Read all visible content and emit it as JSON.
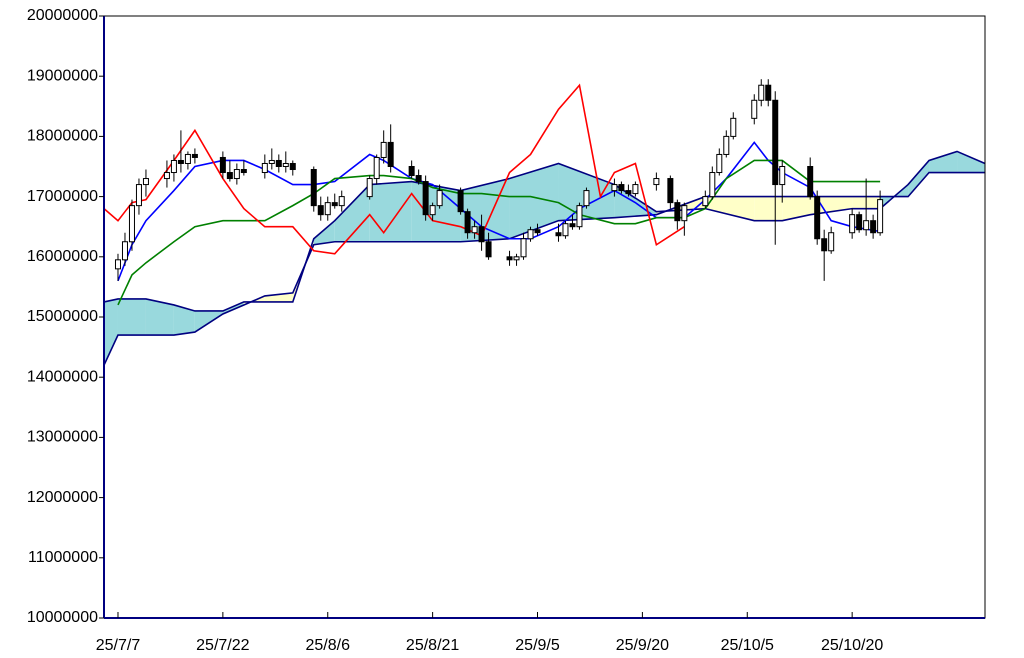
{
  "chart_data": {
    "type": "candlestick",
    "xlim": [
      -2,
      124
    ],
    "ylim": [
      10000000,
      20000000
    ],
    "yticks": [
      10000000,
      11000000,
      12000000,
      13000000,
      14000000,
      15000000,
      16000000,
      17000000,
      18000000,
      19000000,
      20000000
    ],
    "xticks": [
      {
        "value": 0,
        "label": "25/7/7"
      },
      {
        "value": 15,
        "label": "25/7/22"
      },
      {
        "value": 30,
        "label": "25/8/6"
      },
      {
        "value": 45,
        "label": "25/8/21"
      },
      {
        "value": 60,
        "label": "25/9/5"
      },
      {
        "value": 75,
        "label": "25/9/20"
      },
      {
        "value": 90,
        "label": "25/10/5"
      },
      {
        "value": 105,
        "label": "25/10/20"
      }
    ],
    "cloud": {
      "x": [
        -2,
        0,
        4,
        8,
        11,
        15,
        18,
        21,
        25,
        28,
        31,
        36,
        42,
        49,
        56,
        63,
        71,
        77,
        84,
        91,
        95,
        99,
        105,
        109,
        113,
        116,
        120,
        124
      ],
      "span_a": [
        15250000,
        15300000,
        15300000,
        15200000,
        15100000,
        15100000,
        15250000,
        15250000,
        15250000,
        16300000,
        16600000,
        17200000,
        17250000,
        17100000,
        17300000,
        17550000,
        17200000,
        16750000,
        16800000,
        16600000,
        16600000,
        16700000,
        16800000,
        16800000,
        17200000,
        17600000,
        17750000,
        17550000
      ],
      "span_b": [
        14200000,
        14700000,
        14700000,
        14700000,
        14750000,
        15050000,
        15200000,
        15350000,
        15400000,
        16200000,
        16250000,
        16250000,
        16250000,
        16250000,
        16300000,
        16600000,
        16650000,
        16700000,
        17000000,
        17000000,
        17000000,
        17000000,
        17000000,
        17000000,
        17000000,
        17400000,
        17400000,
        17400000
      ],
      "line_color": "#000080",
      "up_fill": "#99d9dd",
      "down_fill": "#ffffc8"
    },
    "series": [
      {
        "color": "#0000ff",
        "x": [
          0,
          2,
          4,
          8,
          11,
          15,
          18,
          21,
          25,
          28,
          31,
          36,
          38,
          42,
          45,
          49,
          52,
          56,
          59,
          63,
          66,
          71,
          74,
          77,
          81,
          84,
          87,
          91,
          93,
          95,
          99,
          102,
          105,
          109
        ],
        "values": [
          15600000,
          16200000,
          16600000,
          17100000,
          17500000,
          17600000,
          17600000,
          17450000,
          17200000,
          17200000,
          17250000,
          17700000,
          17600000,
          17300000,
          17200000,
          16800000,
          16500000,
          16300000,
          16300000,
          16500000,
          16800000,
          17100000,
          16900000,
          16650000,
          16650000,
          16950000,
          17300000,
          17900000,
          17600000,
          17400000,
          17150000,
          16600000,
          16500000,
          16420000
        ]
      },
      {
        "color": "#008000",
        "x": [
          0,
          2,
          4,
          8,
          11,
          15,
          18,
          21,
          25,
          28,
          31,
          36,
          38,
          42,
          45,
          49,
          52,
          56,
          59,
          63,
          66,
          71,
          74,
          77,
          81,
          84,
          87,
          91,
          93,
          95,
          99,
          102,
          105,
          109
        ],
        "values": [
          15200000,
          15700000,
          15900000,
          16250000,
          16500000,
          16600000,
          16600000,
          16600000,
          16850000,
          17050000,
          17300000,
          17350000,
          17350000,
          17300000,
          17150000,
          17050000,
          17050000,
          17000000,
          17000000,
          16900000,
          16700000,
          16550000,
          16550000,
          16650000,
          16650000,
          16800000,
          17300000,
          17600000,
          17600000,
          17600000,
          17250000,
          17250000,
          17250000,
          17250000
        ]
      },
      {
        "color": "#ff0000",
        "x": [
          -2,
          0,
          2,
          4,
          8,
          11,
          15,
          18,
          21,
          25,
          28,
          31,
          36,
          38,
          42,
          45,
          49,
          52,
          56,
          59,
          63,
          66,
          69,
          71,
          74,
          77,
          81
        ],
        "values": [
          16800000,
          16600000,
          16900000,
          16950000,
          17600000,
          18100000,
          17300000,
          16800000,
          16500000,
          16500000,
          16100000,
          16050000,
          16700000,
          16400000,
          17050000,
          16600000,
          16500000,
          16350000,
          17400000,
          17700000,
          18450000,
          18850000,
          17000000,
          17400000,
          17550000,
          16200000,
          16500000
        ]
      }
    ],
    "candles": {
      "up_color": "#ffffff",
      "down_color": "#000000",
      "x": [
        0,
        1,
        2,
        3,
        4,
        7,
        8,
        9,
        10,
        11,
        15,
        16,
        17,
        18,
        21,
        22,
        23,
        24,
        25,
        28,
        29,
        30,
        31,
        32,
        36,
        37,
        38,
        39,
        42,
        43,
        44,
        45,
        46,
        49,
        50,
        51,
        52,
        53,
        56,
        57,
        58,
        59,
        60,
        63,
        64,
        65,
        66,
        67,
        71,
        72,
        73,
        74,
        77,
        79,
        80,
        81,
        84,
        85,
        86,
        87,
        88,
        91,
        92,
        93,
        94,
        95,
        99,
        100,
        101,
        102,
        105,
        106,
        107,
        108,
        109
      ],
      "open": [
        15800000,
        15950000,
        16250000,
        16850000,
        17200000,
        17300000,
        17400000,
        17600000,
        17550000,
        17700000,
        17650000,
        17400000,
        17300000,
        17450000,
        17400000,
        17550000,
        17600000,
        17500000,
        17550000,
        17450000,
        16850000,
        16700000,
        16900000,
        16850000,
        17000000,
        17300000,
        17650000,
        17900000,
        17500000,
        17350000,
        17250000,
        16700000,
        16850000,
        17100000,
        16750000,
        16400000,
        16500000,
        16250000,
        16000000,
        15950000,
        16000000,
        16300000,
        16450000,
        16400000,
        16350000,
        16550000,
        16500000,
        16850000,
        17100000,
        17200000,
        17100000,
        17050000,
        17200000,
        17300000,
        16900000,
        16600000,
        16850000,
        17000000,
        17400000,
        17700000,
        18000000,
        18300000,
        18600000,
        18850000,
        18600000,
        17200000,
        17500000,
        17000000,
        16300000,
        16100000,
        16400000,
        16700000,
        16450000,
        16600000,
        16400000
      ],
      "high": [
        16050000,
        16400000,
        16950000,
        17300000,
        17450000,
        17600000,
        17700000,
        18100000,
        17750000,
        17800000,
        17750000,
        17600000,
        17550000,
        17600000,
        17700000,
        17800000,
        17700000,
        17750000,
        17600000,
        17500000,
        17000000,
        17000000,
        17050000,
        17100000,
        17350000,
        17700000,
        18100000,
        18200000,
        17600000,
        17450000,
        17350000,
        16900000,
        17200000,
        17150000,
        16800000,
        16600000,
        16700000,
        16400000,
        16100000,
        16050000,
        16400000,
        16500000,
        16550000,
        16550000,
        16600000,
        16700000,
        16900000,
        17150000,
        17300000,
        17250000,
        17200000,
        17250000,
        17400000,
        17350000,
        16950000,
        16900000,
        17100000,
        17500000,
        17800000,
        18100000,
        18400000,
        18700000,
        18950000,
        18950000,
        18750000,
        17600000,
        17650000,
        17100000,
        16450000,
        16500000,
        16800000,
        16750000,
        17300000,
        16700000,
        17100000
      ],
      "low": [
        15600000,
        15850000,
        16100000,
        16700000,
        17000000,
        17150000,
        17250000,
        17400000,
        17450000,
        17550000,
        17300000,
        17250000,
        17200000,
        17350000,
        17300000,
        17450000,
        17400000,
        17400000,
        17350000,
        16750000,
        16600000,
        16600000,
        16800000,
        16750000,
        16950000,
        17200000,
        17550000,
        17400000,
        17300000,
        17200000,
        16600000,
        16600000,
        16800000,
        16700000,
        16300000,
        16300000,
        16100000,
        15950000,
        15850000,
        15850000,
        15950000,
        16250000,
        16350000,
        16250000,
        16300000,
        16450000,
        16450000,
        16800000,
        17000000,
        17050000,
        17000000,
        17000000,
        17100000,
        16800000,
        16450000,
        16350000,
        16800000,
        16950000,
        17350000,
        17650000,
        17950000,
        18200000,
        18500000,
        18500000,
        16200000,
        16900000,
        16950000,
        16200000,
        15600000,
        16050000,
        16300000,
        16400000,
        16350000,
        16300000,
        16350000
      ],
      "close": [
        15950000,
        16250000,
        16850000,
        17200000,
        17300000,
        17400000,
        17600000,
        17550000,
        17700000,
        17650000,
        17400000,
        17300000,
        17450000,
        17400000,
        17550000,
        17600000,
        17500000,
        17550000,
        17450000,
        16850000,
        16700000,
        16900000,
        16850000,
        17000000,
        17300000,
        17650000,
        17900000,
        17500000,
        17350000,
        17250000,
        16700000,
        16850000,
        17100000,
        16750000,
        16400000,
        16500000,
        16250000,
        16000000,
        15950000,
        16000000,
        16300000,
        16450000,
        16400000,
        16350000,
        16550000,
        16500000,
        16850000,
        17100000,
        17200000,
        17100000,
        17050000,
        17200000,
        17300000,
        16900000,
        16600000,
        16850000,
        17000000,
        17400000,
        17700000,
        18000000,
        18300000,
        18600000,
        18850000,
        18600000,
        17200000,
        17500000,
        17000000,
        16300000,
        16100000,
        16400000,
        16700000,
        16450000,
        16600000,
        16400000,
        16950000
      ]
    }
  }
}
